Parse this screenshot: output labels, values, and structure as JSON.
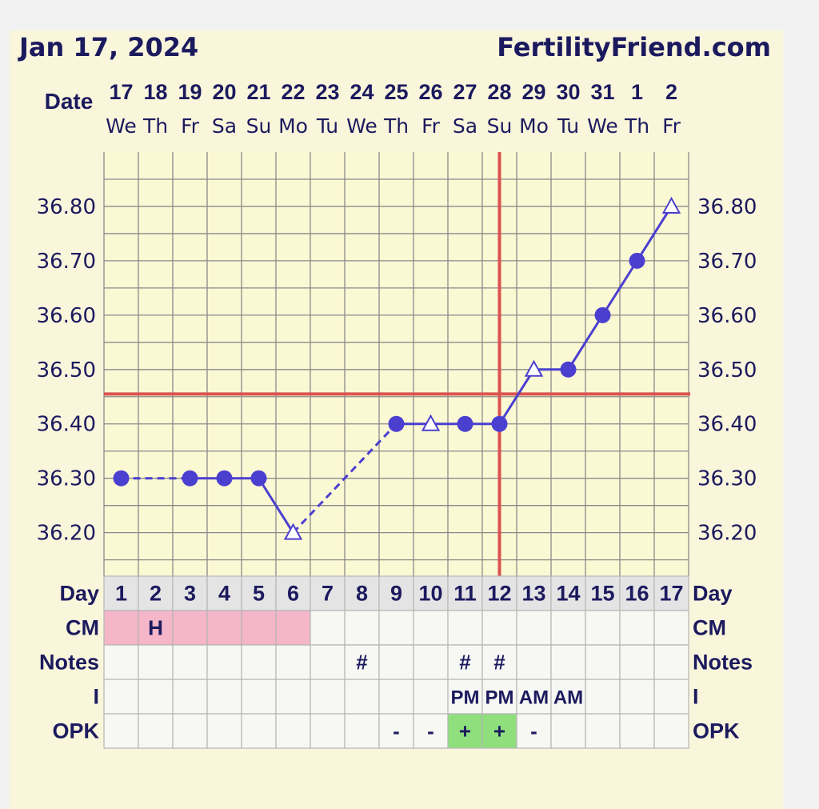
{
  "header": {
    "date": "Jan 17, 2024",
    "site": "FertilityFriend.com"
  },
  "labels": {
    "date": "Date",
    "day": "Day",
    "cm": "CM",
    "notes": "Notes",
    "intercourse": "I",
    "opk": "OPK"
  },
  "colors": {
    "panel_bg": "#faf6dc",
    "plot_bg": "#fbf8d4",
    "grid": "#8a8a8a",
    "text": "#1c1a5e",
    "series": "#4b3fcf",
    "coverline": "#d9534f",
    "cm_fill": "#f4b6c8",
    "opk_positive": "#8fe07c",
    "day_row_bg": "#e4e4e4"
  },
  "chart_data": {
    "type": "line",
    "title": "",
    "y_ticks": [
      "36.20",
      "36.30",
      "36.40",
      "36.50",
      "36.60",
      "36.70",
      "36.80"
    ],
    "ylim": [
      36.12,
      36.9
    ],
    "dates": [
      "17",
      "18",
      "19",
      "20",
      "21",
      "22",
      "23",
      "24",
      "25",
      "26",
      "27",
      "28",
      "29",
      "30",
      "31",
      "1",
      "2"
    ],
    "weekdays": [
      "We",
      "Th",
      "Fr",
      "Sa",
      "Su",
      "Mo",
      "Tu",
      "We",
      "Th",
      "Fr",
      "Sa",
      "Su",
      "Mo",
      "Tu",
      "We",
      "Th",
      "Fr"
    ],
    "cycle_days": [
      "1",
      "2",
      "3",
      "4",
      "5",
      "6",
      "7",
      "8",
      "9",
      "10",
      "11",
      "12",
      "13",
      "14",
      "15",
      "16",
      "17"
    ],
    "temperatures": [
      {
        "day": 1,
        "temp": 36.3,
        "marker": "circle"
      },
      {
        "day": 3,
        "temp": 36.3,
        "marker": "circle"
      },
      {
        "day": 4,
        "temp": 36.3,
        "marker": "circle"
      },
      {
        "day": 5,
        "temp": 36.3,
        "marker": "circle"
      },
      {
        "day": 6,
        "temp": 36.2,
        "marker": "triangle"
      },
      {
        "day": 9,
        "temp": 36.4,
        "marker": "circle"
      },
      {
        "day": 10,
        "temp": 36.4,
        "marker": "triangle"
      },
      {
        "day": 11,
        "temp": 36.4,
        "marker": "circle"
      },
      {
        "day": 12,
        "temp": 36.4,
        "marker": "circle"
      },
      {
        "day": 13,
        "temp": 36.5,
        "marker": "triangle"
      },
      {
        "day": 14,
        "temp": 36.5,
        "marker": "circle"
      },
      {
        "day": 15,
        "temp": 36.6,
        "marker": "circle"
      },
      {
        "day": 16,
        "temp": 36.7,
        "marker": "circle"
      },
      {
        "day": 17,
        "temp": 36.8,
        "marker": "triangle"
      }
    ],
    "segments": [
      {
        "from": 1,
        "to": 3,
        "style": "dashed"
      },
      {
        "from": 3,
        "to": 4,
        "style": "solid"
      },
      {
        "from": 4,
        "to": 5,
        "style": "solid"
      },
      {
        "from": 5,
        "to": 6,
        "style": "solid"
      },
      {
        "from": 6,
        "to": 9,
        "style": "dashed"
      },
      {
        "from": 9,
        "to": 10,
        "style": "solid"
      },
      {
        "from": 10,
        "to": 11,
        "style": "solid"
      },
      {
        "from": 11,
        "to": 12,
        "style": "solid"
      },
      {
        "from": 12,
        "to": 13,
        "style": "solid"
      },
      {
        "from": 13,
        "to": 14,
        "style": "solid"
      },
      {
        "from": 14,
        "to": 15,
        "style": "solid"
      },
      {
        "from": 15,
        "to": 16,
        "style": "solid"
      },
      {
        "from": 16,
        "to": 17,
        "style": "solid"
      }
    ],
    "coverline_temp": 36.455,
    "ovulation_day": 12,
    "grid": true,
    "rows": {
      "cm": {
        "filled_days": [
          1,
          2,
          3,
          4,
          5,
          6
        ],
        "text": {
          "2": "H"
        }
      },
      "notes": {
        "text": {
          "8": "#",
          "11": "#",
          "12": "#"
        }
      },
      "intercourse": {
        "text": {
          "11": "PM",
          "12": "PM",
          "13": "AM",
          "14": "AM"
        }
      },
      "opk": {
        "text": {
          "9": "-",
          "10": "-",
          "11": "+",
          "12": "+",
          "13": "-"
        },
        "positive_days": [
          11,
          12
        ]
      }
    }
  }
}
